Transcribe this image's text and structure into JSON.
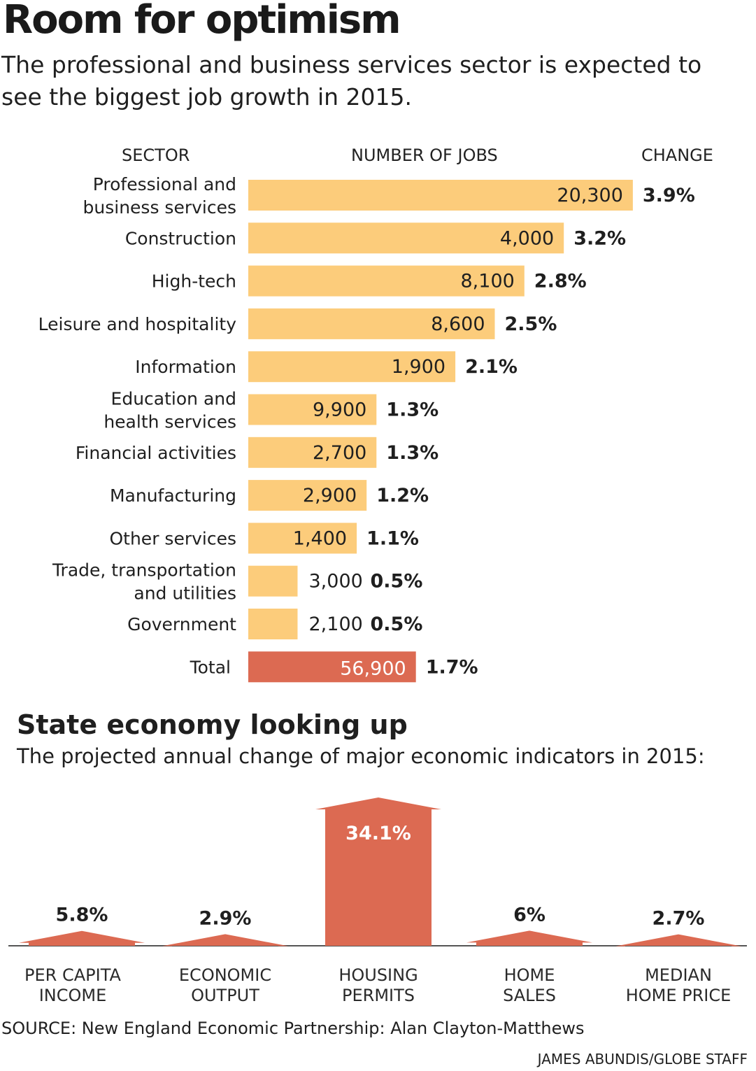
{
  "header": {
    "title": "Room for optimism",
    "subtitle": "The professional and business services sector is expected to see the biggest job growth in 2015."
  },
  "colors": {
    "bar": "#fccc7b",
    "total_bar": "#dc6a52",
    "text": "#1f1f1f"
  },
  "chart_data": [
    {
      "type": "bar",
      "orientation": "horizontal",
      "column_headers": {
        "sector": "SECTOR",
        "jobs": "NUMBER OF JOBS",
        "change": "CHANGE"
      },
      "note": "",
      "categories": [
        [
          "Professional and",
          "business services"
        ],
        [
          "Construction"
        ],
        [
          "High-tech"
        ],
        [
          "Leisure  and hospitality"
        ],
        [
          "Information"
        ],
        [
          "Education and",
          "health services"
        ],
        [
          "Financial activities"
        ],
        [
          "Manufacturing"
        ],
        [
          "Other services"
        ],
        [
          "Trade, transportation",
          "and utilities"
        ],
        [
          "Government"
        ],
        [
          "Total"
        ]
      ],
      "jobs_labels": [
        "20,300",
        "4,000",
        "8,100",
        "8,600",
        "1,900",
        "9,900",
        "2,700",
        "2,900",
        "1,400",
        "3,000",
        "2,100",
        "56,900"
      ],
      "change_pct": [
        3.9,
        3.2,
        2.8,
        2.5,
        2.1,
        1.3,
        1.3,
        1.2,
        1.1,
        0.5,
        0.5,
        1.7
      ],
      "change_labels": [
        "3.9%",
        "3.2%",
        "2.8%",
        "2.5%",
        "2.1%",
        "1.3%",
        "1.3%",
        "1.2%",
        "1.1%",
        "0.5%",
        "0.5%",
        "1.7%"
      ],
      "highlight_index": 11
    },
    {
      "type": "bar",
      "title": "State economy looking up",
      "subtitle": "The projected annual change of major economic indicators in 2015:",
      "categories": [
        [
          "PER CAPITA",
          "INCOME"
        ],
        [
          "ECONOMIC",
          "OUTPUT"
        ],
        [
          "HOUSING",
          "PERMITS"
        ],
        [
          "HOME",
          "SALES"
        ],
        [
          "MEDIAN",
          "HOME PRICE"
        ]
      ],
      "values": [
        5.8,
        2.9,
        34.1,
        6,
        2.7
      ],
      "value_labels": [
        "5.8%",
        "2.9%",
        "34.1%",
        "6%",
        "2.7%"
      ],
      "ylim": [
        0,
        40
      ]
    }
  ],
  "footer": {
    "source": "SOURCE: New England Economic Partnership: Alan Clayton-Matthews",
    "credit": "JAMES ABUNDIS/GLOBE STAFF"
  }
}
